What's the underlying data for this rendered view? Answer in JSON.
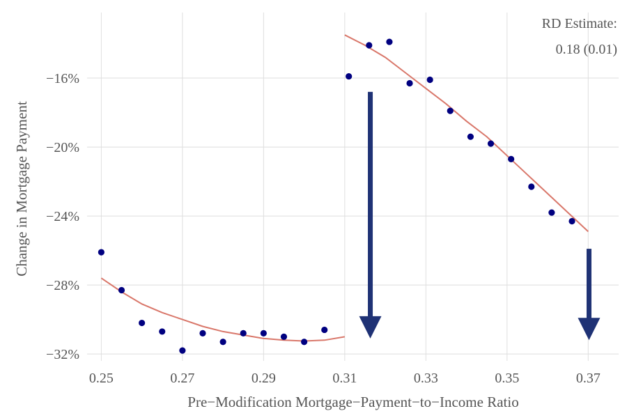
{
  "chart_data": {
    "type": "scatter",
    "xlabel": "Pre−Modification Mortgage−Payment−to−Income Ratio",
    "ylabel": "Change in Mortgage Payment",
    "x_ticks": [
      "0.25",
      "0.27",
      "0.29",
      "0.31",
      "0.33",
      "0.35",
      "0.37"
    ],
    "x_tick_values": [
      0.25,
      0.27,
      0.29,
      0.31,
      0.33,
      0.35,
      0.37
    ],
    "y_ticks": [
      "−16%",
      "−20%",
      "−24%",
      "−28%",
      "−32%"
    ],
    "y_tick_values": [
      -16,
      -20,
      -24,
      -28,
      -32
    ],
    "xlim": [
      0.2465,
      0.3775
    ],
    "ylim": [
      -32.4,
      -12.2
    ],
    "grid": true,
    "annotation": {
      "line1": "RD Estimate:",
      "line2": "0.18 (0.01)"
    },
    "points": [
      {
        "x": 0.25,
        "y": -26.1
      },
      {
        "x": 0.255,
        "y": -28.3
      },
      {
        "x": 0.26,
        "y": -30.2
      },
      {
        "x": 0.265,
        "y": -30.7
      },
      {
        "x": 0.27,
        "y": -31.8
      },
      {
        "x": 0.275,
        "y": -30.8
      },
      {
        "x": 0.28,
        "y": -31.3
      },
      {
        "x": 0.285,
        "y": -30.8
      },
      {
        "x": 0.29,
        "y": -30.8
      },
      {
        "x": 0.295,
        "y": -31.0
      },
      {
        "x": 0.3,
        "y": -31.3
      },
      {
        "x": 0.305,
        "y": -30.6
      },
      {
        "x": 0.311,
        "y": -15.9
      },
      {
        "x": 0.316,
        "y": -14.1
      },
      {
        "x": 0.321,
        "y": -13.9
      },
      {
        "x": 0.326,
        "y": -16.3
      },
      {
        "x": 0.331,
        "y": -16.1
      },
      {
        "x": 0.336,
        "y": -17.9
      },
      {
        "x": 0.341,
        "y": -19.4
      },
      {
        "x": 0.346,
        "y": -19.8
      },
      {
        "x": 0.351,
        "y": -20.7
      },
      {
        "x": 0.356,
        "y": -22.3
      },
      {
        "x": 0.361,
        "y": -23.8
      },
      {
        "x": 0.366,
        "y": -24.3
      }
    ],
    "fit_left": [
      {
        "x": 0.25,
        "y": -27.6
      },
      {
        "x": 0.255,
        "y": -28.4
      },
      {
        "x": 0.26,
        "y": -29.1
      },
      {
        "x": 0.265,
        "y": -29.6
      },
      {
        "x": 0.27,
        "y": -30.0
      },
      {
        "x": 0.275,
        "y": -30.4
      },
      {
        "x": 0.28,
        "y": -30.7
      },
      {
        "x": 0.285,
        "y": -30.9
      },
      {
        "x": 0.29,
        "y": -31.1
      },
      {
        "x": 0.295,
        "y": -31.2
      },
      {
        "x": 0.3,
        "y": -31.25
      },
      {
        "x": 0.305,
        "y": -31.2
      },
      {
        "x": 0.31,
        "y": -31.0
      }
    ],
    "fit_right": [
      {
        "x": 0.31,
        "y": -13.5
      },
      {
        "x": 0.315,
        "y": -14.1
      },
      {
        "x": 0.32,
        "y": -14.8
      },
      {
        "x": 0.325,
        "y": -15.7
      },
      {
        "x": 0.33,
        "y": -16.6
      },
      {
        "x": 0.335,
        "y": -17.5
      },
      {
        "x": 0.34,
        "y": -18.5
      },
      {
        "x": 0.345,
        "y": -19.4
      },
      {
        "x": 0.35,
        "y": -20.5
      },
      {
        "x": 0.355,
        "y": -21.6
      },
      {
        "x": 0.36,
        "y": -22.7
      },
      {
        "x": 0.365,
        "y": -23.8
      },
      {
        "x": 0.37,
        "y": -24.9
      }
    ],
    "arrows": [
      {
        "x": 0.3163,
        "y_start": -16.8,
        "y_end": -31.1
      },
      {
        "x": 0.3702,
        "y_start": -25.9,
        "y_end": -31.2
      }
    ],
    "colors": {
      "points": "#000080",
      "fit_line": "#d9776a",
      "arrow": "#1f3275",
      "text": "#555555",
      "grid": "#dedede"
    }
  }
}
